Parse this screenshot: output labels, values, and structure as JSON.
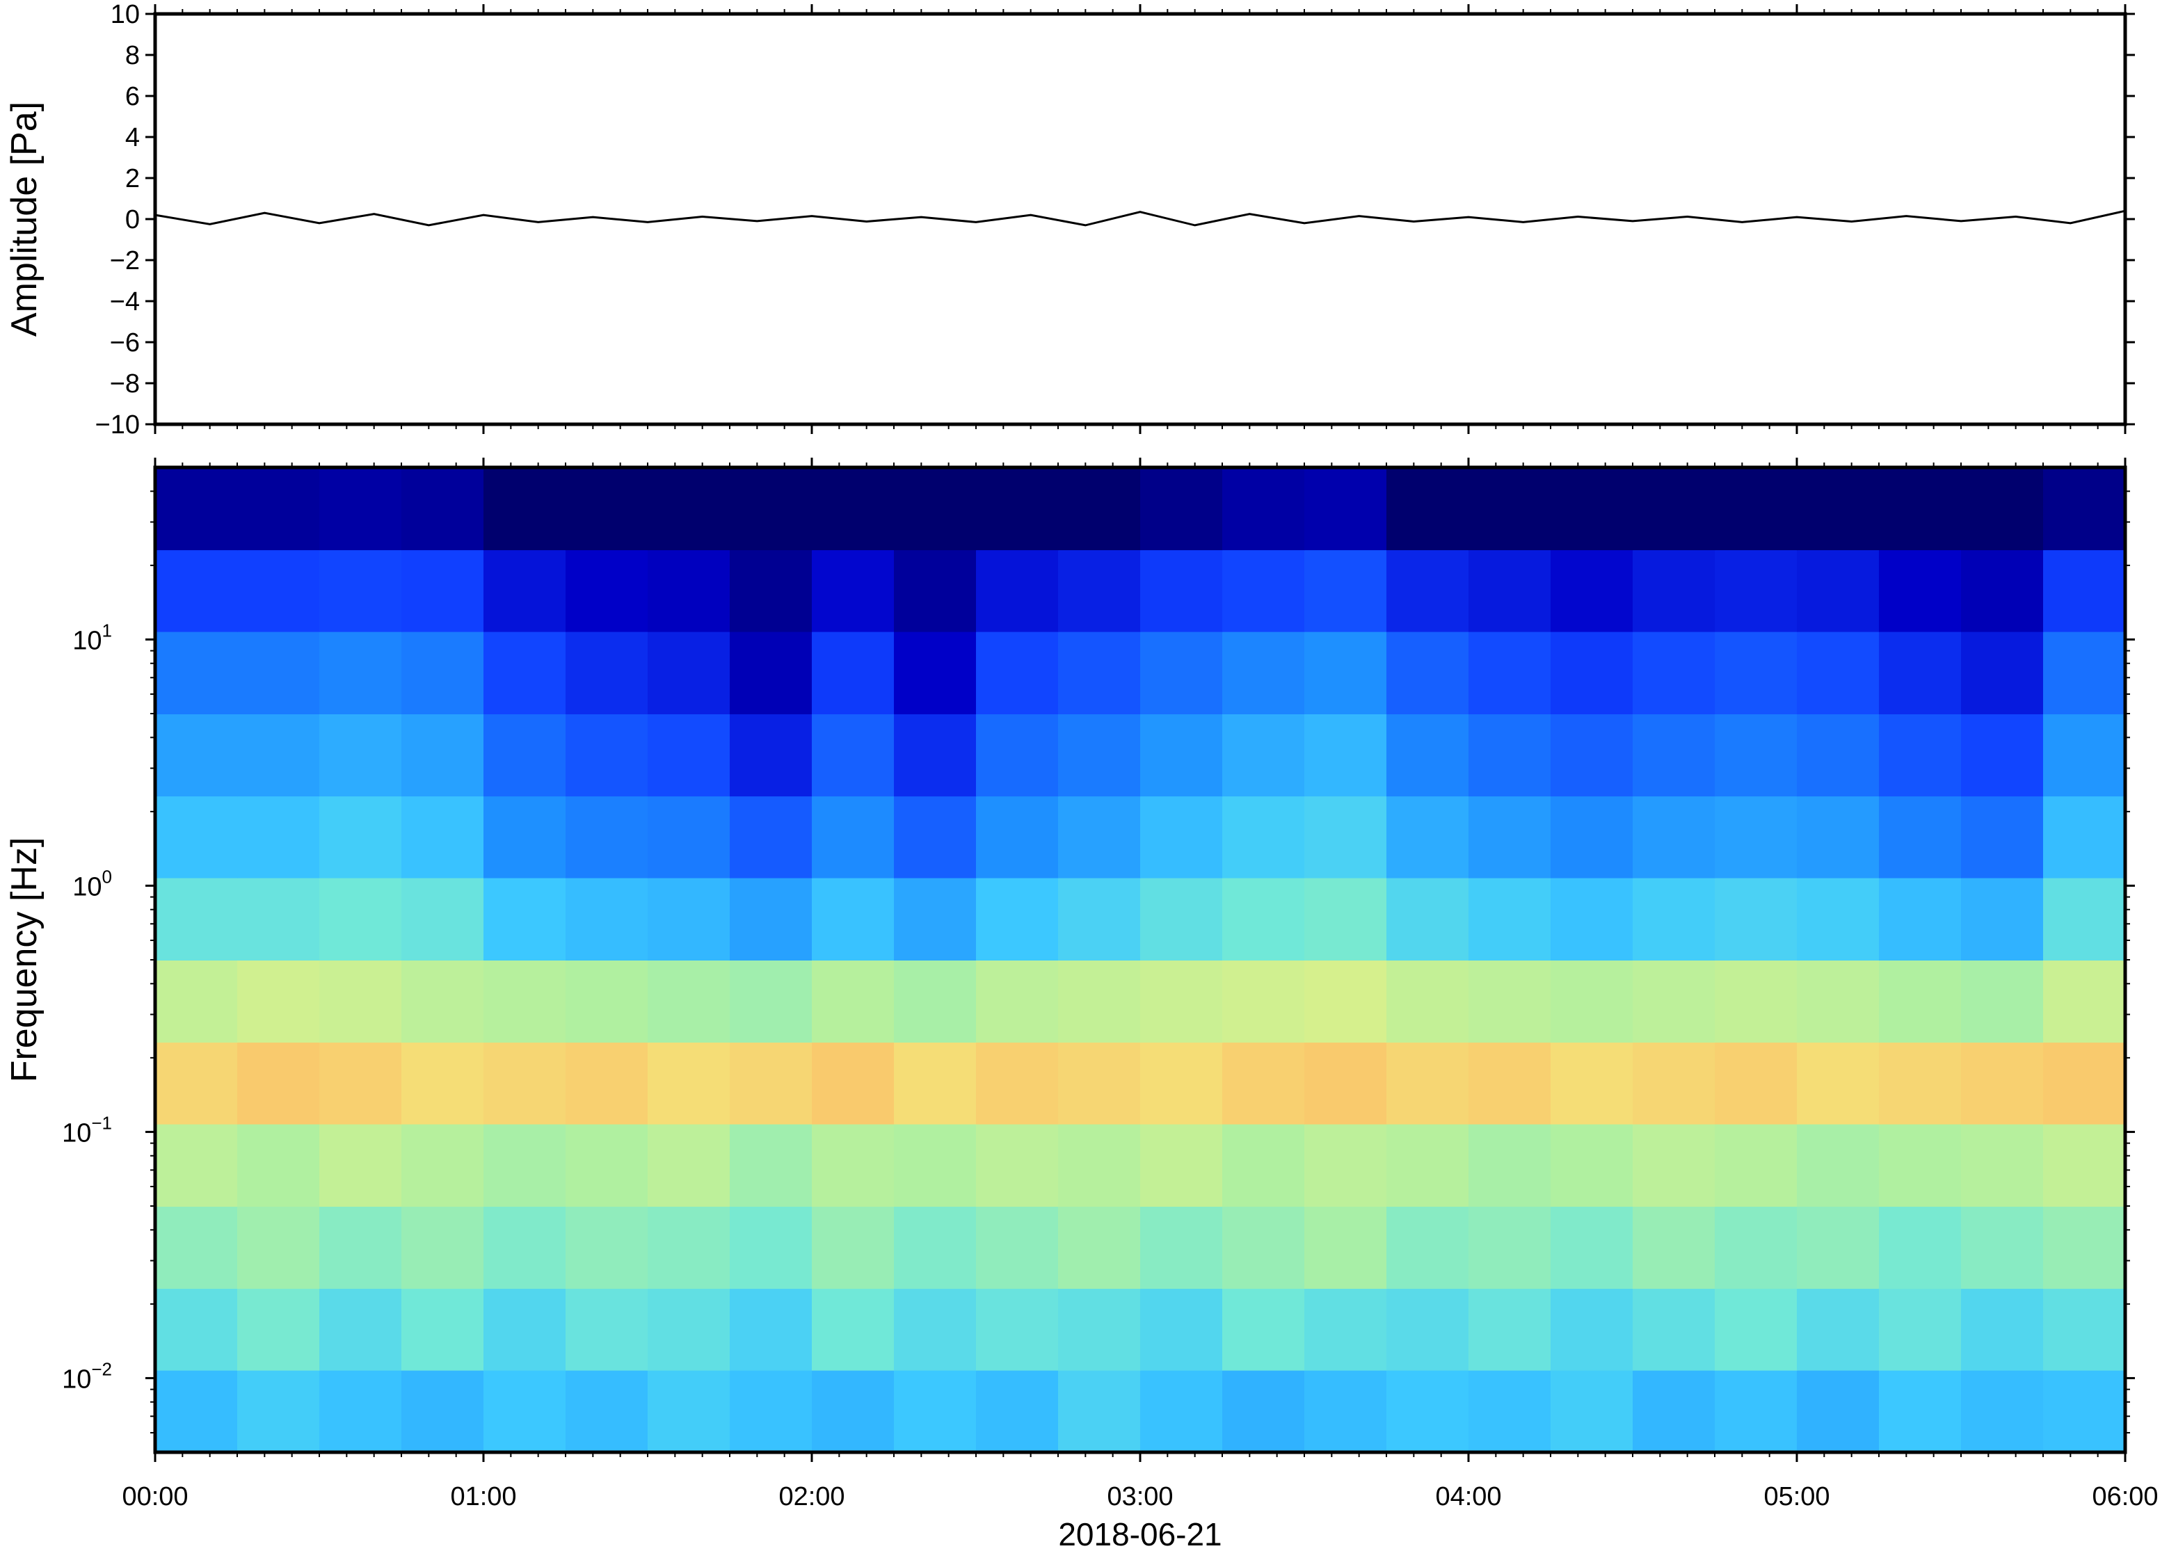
{
  "chart_data": [
    {
      "type": "line",
      "ylabel": "Amplitude [Pa]",
      "color": "#000000",
      "x": [
        0,
        10,
        20,
        30,
        40,
        50,
        60,
        70,
        80,
        90,
        100,
        110,
        120,
        130,
        140,
        150,
        160,
        170,
        180,
        190,
        200,
        210,
        220,
        230,
        240,
        250,
        260,
        270,
        280,
        290,
        300,
        310,
        320,
        330,
        340,
        350,
        360
      ],
      "values": [
        0.2,
        -0.25,
        0.3,
        -0.2,
        0.25,
        -0.3,
        0.2,
        -0.15,
        0.1,
        -0.15,
        0.12,
        -0.1,
        0.15,
        -0.12,
        0.1,
        -0.15,
        0.2,
        -0.3,
        0.35,
        -0.3,
        0.25,
        -0.2,
        0.15,
        -0.12,
        0.1,
        -0.15,
        0.12,
        -0.1,
        0.12,
        -0.15,
        0.1,
        -0.12,
        0.15,
        -0.1,
        0.12,
        -0.2,
        0.4
      ],
      "xlim": [
        0,
        360
      ],
      "xticks": [
        0,
        60,
        120,
        180,
        240,
        300,
        360
      ],
      "ylim": [
        -10,
        10
      ],
      "yticks": [
        {
          "value": -10,
          "label": "−10"
        },
        {
          "value": -8,
          "label": "−8"
        },
        {
          "value": -6,
          "label": "−6"
        },
        {
          "value": -4,
          "label": "−4"
        },
        {
          "value": -2,
          "label": "−2"
        },
        0,
        2,
        4,
        6,
        8,
        10
      ]
    },
    {
      "type": "heatmap",
      "ylabel": "Frequency [Hz]",
      "xlabel": "2018-06-21",
      "log_y": true,
      "xlim": [
        0,
        360
      ],
      "xticks": [
        {
          "value": 0,
          "label": "00:00"
        },
        {
          "value": 60,
          "label": "01:00"
        },
        {
          "value": 120,
          "label": "02:00"
        },
        {
          "value": 180,
          "label": "03:00"
        },
        {
          "value": 240,
          "label": "04:00"
        },
        {
          "value": 300,
          "label": "05:00"
        },
        {
          "value": 360,
          "label": "06:00"
        }
      ],
      "ylim": [
        0.005,
        50
      ],
      "yticks": [
        {
          "value": 0.01,
          "label": "10",
          "exponent": "−2"
        },
        {
          "value": 0.1,
          "label": "10",
          "exponent": "−1"
        },
        {
          "value": 1,
          "label": "10",
          "exponent": "0"
        },
        {
          "value": 10,
          "label": "10",
          "exponent": "1"
        }
      ],
      "x_edges": [
        0,
        15,
        30,
        45,
        60,
        75,
        90,
        105,
        120,
        135,
        150,
        165,
        180,
        195,
        210,
        225,
        240,
        255,
        270,
        285,
        300,
        315,
        330,
        345,
        360
      ],
      "y_edges": [
        0.005,
        0.0108,
        0.0232,
        0.05,
        0.108,
        0.232,
        0.5,
        1.08,
        2.32,
        5,
        10.8,
        23.2,
        50
      ],
      "zlim": [
        0,
        10
      ],
      "colormap": [
        [
          0,
          "#00006e"
        ],
        [
          1,
          "#0000c8"
        ],
        [
          2,
          "#1040ff"
        ],
        [
          3.5,
          "#1e90ff"
        ],
        [
          4.5,
          "#3cc8ff"
        ],
        [
          5.2,
          "#70e8d8"
        ],
        [
          6,
          "#b0f0a0"
        ],
        [
          7,
          "#f0f080"
        ],
        [
          8,
          "#ffb060"
        ],
        [
          10,
          "#ff4000"
        ]
      ],
      "z": [
        [
          4.3,
          4.6,
          4.4,
          4.2,
          4.5,
          4.3,
          4.6,
          4.4,
          4.2,
          4.5,
          4.3,
          4.7,
          4.4,
          4.1,
          4.3,
          4.5,
          4.4,
          4.6,
          4.2,
          4.4,
          4.1,
          4.5,
          4.3,
          4.4
        ],
        [
          5.0,
          5.3,
          4.9,
          5.2,
          4.8,
          5.1,
          5.0,
          4.7,
          5.2,
          4.9,
          5.1,
          5.0,
          4.8,
          5.2,
          5.0,
          4.9,
          5.1,
          4.8,
          5.0,
          5.2,
          4.9,
          5.1,
          4.8,
          5.0
        ],
        [
          5.6,
          5.8,
          5.5,
          5.7,
          5.4,
          5.6,
          5.5,
          5.3,
          5.7,
          5.4,
          5.6,
          5.8,
          5.5,
          5.7,
          5.9,
          5.5,
          5.6,
          5.4,
          5.7,
          5.5,
          5.6,
          5.3,
          5.5,
          5.7
        ],
        [
          6.2,
          6.0,
          6.3,
          6.1,
          5.9,
          6.0,
          6.2,
          5.8,
          6.1,
          6.0,
          6.2,
          6.1,
          6.3,
          6.0,
          6.2,
          6.1,
          5.9,
          6.0,
          6.2,
          6.1,
          5.9,
          6.0,
          6.1,
          6.3
        ],
        [
          7.4,
          7.6,
          7.5,
          7.3,
          7.4,
          7.5,
          7.3,
          7.4,
          7.6,
          7.3,
          7.5,
          7.4,
          7.3,
          7.5,
          7.6,
          7.4,
          7.5,
          7.3,
          7.4,
          7.5,
          7.3,
          7.4,
          7.5,
          7.6
        ],
        [
          6.3,
          6.5,
          6.4,
          6.2,
          6.1,
          6.0,
          5.9,
          5.8,
          6.1,
          5.9,
          6.2,
          6.3,
          6.4,
          6.5,
          6.6,
          6.3,
          6.2,
          6.1,
          6.2,
          6.3,
          6.2,
          6.0,
          5.9,
          6.4
        ],
        [
          5.1,
          5.1,
          5.2,
          5.1,
          4.5,
          4.3,
          4.2,
          3.8,
          4.4,
          3.9,
          4.5,
          4.7,
          5.0,
          5.2,
          5.3,
          4.8,
          4.6,
          4.4,
          4.6,
          4.7,
          4.6,
          4.3,
          4.1,
          5.0
        ],
        [
          4.4,
          4.4,
          4.6,
          4.4,
          3.5,
          3.2,
          3.1,
          2.5,
          3.4,
          2.6,
          3.5,
          3.8,
          4.3,
          4.6,
          4.7,
          4.0,
          3.7,
          3.4,
          3.7,
          3.8,
          3.7,
          3.2,
          2.9,
          4.3
        ],
        [
          3.8,
          3.8,
          4.0,
          3.8,
          2.8,
          2.4,
          2.2,
          1.5,
          2.6,
          1.7,
          2.8,
          3.1,
          3.6,
          4.0,
          4.2,
          3.3,
          2.9,
          2.6,
          2.9,
          3.1,
          2.9,
          2.4,
          2.1,
          3.6
        ],
        [
          3.1,
          3.1,
          3.3,
          3.1,
          2.1,
          1.7,
          1.5,
          0.8,
          1.9,
          1.0,
          2.1,
          2.4,
          2.9,
          3.3,
          3.5,
          2.6,
          2.2,
          1.9,
          2.2,
          2.4,
          2.2,
          1.7,
          1.4,
          2.9
        ],
        [
          2.0,
          2.0,
          2.1,
          2.0,
          1.3,
          1.0,
          0.9,
          0.4,
          1.1,
          0.5,
          1.3,
          1.5,
          1.9,
          2.1,
          2.3,
          1.6,
          1.4,
          1.1,
          1.4,
          1.5,
          1.4,
          1.0,
          0.8,
          1.9
        ],
        [
          0.5,
          0.5,
          0.6,
          0.5,
          0,
          0,
          0,
          0,
          0,
          0,
          0,
          0,
          0.3,
          0.6,
          0.7,
          0,
          0,
          0,
          0,
          0,
          0,
          0,
          0,
          0.3
        ]
      ]
    }
  ]
}
